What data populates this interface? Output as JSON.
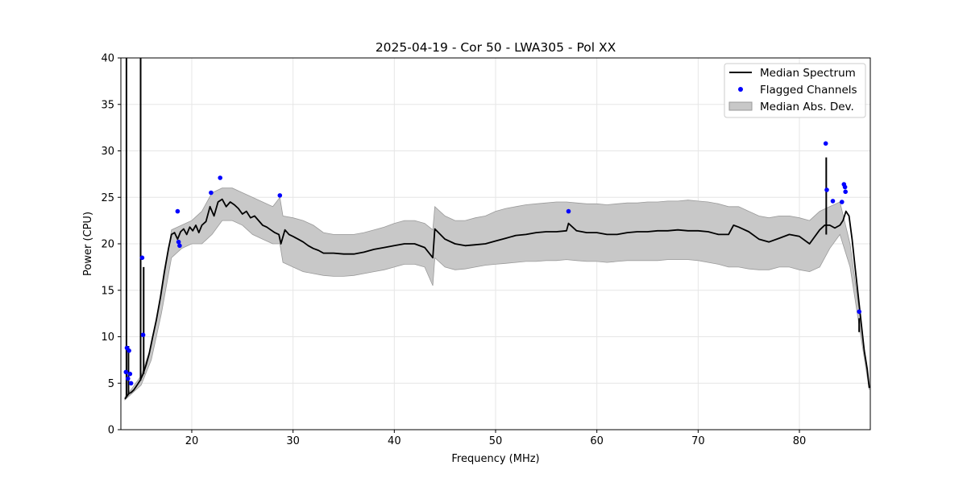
{
  "chart_data": {
    "type": "line",
    "title": "2025-04-19 - Cor 50 - LWA305 - Pol XX",
    "xlabel": "Frequency (MHz)",
    "ylabel": "Power (CPU)",
    "xlim": [
      13.0,
      87.0
    ],
    "ylim": [
      0,
      40
    ],
    "x_ticks": [
      20,
      30,
      40,
      50,
      60,
      70,
      80
    ],
    "x_tick_labels": [
      "20",
      "30",
      "40",
      "50",
      "60",
      "70",
      "80"
    ],
    "y_ticks": [
      0,
      5,
      10,
      15,
      20,
      25,
      30,
      35,
      40
    ],
    "y_tick_labels": [
      "0",
      "5",
      "10",
      "15",
      "20",
      "25",
      "30",
      "35",
      "40"
    ],
    "grid": true,
    "legend_position": "top-right",
    "legend": [
      "Median Spectrum",
      "Flagged Channels",
      "Median Abs. Dev."
    ],
    "colors": {
      "median": "#000000",
      "flagged": "#0000ff",
      "mad_fill": "#c8c8c8",
      "mad_edge": "#9a9a9a",
      "grid": "#e6e6e6"
    },
    "series": [
      {
        "name": "Median Spectrum",
        "kind": "line",
        "x": [
          13.4,
          13.6,
          13.8,
          14.0,
          14.3,
          14.6,
          14.9,
          15.2,
          15.5,
          15.8,
          16.1,
          16.5,
          16.9,
          17.3,
          17.7,
          18.0,
          18.3,
          18.6,
          18.9,
          19.2,
          19.5,
          19.8,
          20.1,
          20.4,
          20.7,
          21.0,
          21.4,
          21.8,
          22.2,
          22.6,
          23.0,
          23.4,
          23.8,
          24.2,
          24.6,
          25.0,
          25.4,
          25.8,
          26.2,
          26.6,
          27.0,
          27.4,
          27.8,
          28.2,
          28.6,
          28.8,
          29.2,
          29.6,
          30.0,
          30.5,
          31.0,
          31.5,
          32.0,
          32.5,
          33.0,
          34.0,
          35.0,
          36.0,
          37.0,
          38.0,
          38.5,
          39.0,
          40.0,
          41.0,
          42.0,
          43.0,
          43.8,
          44.0,
          45.0,
          46.0,
          47.0,
          48.0,
          49.0,
          50.0,
          51.0,
          52.0,
          53.0,
          54.0,
          55.0,
          56.0,
          57.0,
          57.2,
          58.0,
          59.0,
          60.0,
          61.0,
          62.0,
          63.0,
          64.0,
          65.0,
          66.0,
          67.0,
          68.0,
          69.0,
          70.0,
          71.0,
          72.0,
          73.0,
          73.5,
          74.0,
          75.0,
          76.0,
          77.0,
          78.0,
          79.0,
          80.0,
          81.0,
          82.0,
          82.5,
          83.0,
          83.5,
          84.0,
          84.3,
          84.6,
          84.9,
          85.2,
          85.5,
          85.8,
          86.1,
          86.4,
          86.7,
          86.9
        ],
        "y": [
          3.3,
          3.6,
          3.9,
          4.0,
          4.3,
          4.8,
          5.3,
          6.0,
          7.0,
          8.2,
          9.8,
          11.8,
          14.2,
          17.0,
          19.5,
          21.0,
          21.2,
          20.5,
          21.3,
          21.6,
          21.0,
          21.8,
          21.4,
          22.0,
          21.2,
          22.0,
          22.4,
          24.0,
          23.0,
          24.5,
          24.8,
          24.0,
          24.5,
          24.2,
          23.8,
          23.2,
          23.5,
          22.8,
          23.0,
          22.5,
          22.0,
          21.8,
          21.5,
          21.2,
          21.0,
          20.0,
          21.5,
          21.0,
          20.8,
          20.5,
          20.2,
          19.8,
          19.5,
          19.3,
          19.0,
          19.0,
          18.9,
          18.9,
          19.1,
          19.4,
          19.5,
          19.6,
          19.8,
          20.0,
          20.0,
          19.6,
          18.5,
          21.6,
          20.5,
          20.0,
          19.8,
          19.9,
          20.0,
          20.3,
          20.6,
          20.9,
          21.0,
          21.2,
          21.3,
          21.3,
          21.4,
          22.2,
          21.4,
          21.2,
          21.2,
          21.0,
          21.0,
          21.2,
          21.3,
          21.3,
          21.4,
          21.4,
          21.5,
          21.4,
          21.4,
          21.3,
          21.0,
          21.0,
          22.0,
          21.8,
          21.3,
          20.5,
          20.2,
          20.6,
          21.0,
          20.8,
          20.0,
          21.5,
          22.0,
          22.0,
          21.7,
          22.0,
          22.5,
          23.5,
          23.0,
          20.5,
          17.5,
          14.5,
          11.5,
          8.5,
          6.5,
          4.5
        ]
      },
      {
        "name": "Median Abs. Dev.",
        "kind": "band",
        "x": [
          13.4,
          14.0,
          15.0,
          16.0,
          17.0,
          18.0,
          19.0,
          20.0,
          21.0,
          22.0,
          23.0,
          24.0,
          25.0,
          26.0,
          27.0,
          28.0,
          28.7,
          29.0,
          30.0,
          31.0,
          32.0,
          33.0,
          34.0,
          35.0,
          36.0,
          37.0,
          38.0,
          39.0,
          40.0,
          41.0,
          42.0,
          43.0,
          43.8,
          44.0,
          45.0,
          46.0,
          47.0,
          48.0,
          49.0,
          50.0,
          51.0,
          52.0,
          53.0,
          54.0,
          55.0,
          56.0,
          57.0,
          58.0,
          59.0,
          60.0,
          61.0,
          62.0,
          63.0,
          64.0,
          65.0,
          66.0,
          67.0,
          68.0,
          69.0,
          70.0,
          71.0,
          72.0,
          73.0,
          74.0,
          75.0,
          76.0,
          77.0,
          78.0,
          79.0,
          80.0,
          81.0,
          82.0,
          83.0,
          84.0,
          85.0,
          86.0,
          86.9
        ],
        "upper": [
          3.5,
          4.3,
          5.8,
          9.0,
          14.5,
          21.5,
          22.0,
          22.5,
          23.5,
          25.5,
          26.0,
          26.0,
          25.5,
          25.0,
          24.5,
          24.0,
          25.0,
          23.0,
          22.8,
          22.5,
          22.0,
          21.2,
          21.0,
          21.0,
          21.0,
          21.2,
          21.5,
          21.8,
          22.2,
          22.5,
          22.5,
          22.2,
          21.5,
          24.0,
          23.0,
          22.5,
          22.5,
          22.8,
          23.0,
          23.5,
          23.8,
          24.0,
          24.2,
          24.3,
          24.4,
          24.5,
          24.5,
          24.4,
          24.3,
          24.3,
          24.2,
          24.3,
          24.4,
          24.4,
          24.5,
          24.5,
          24.6,
          24.6,
          24.7,
          24.6,
          24.5,
          24.3,
          24.0,
          24.0,
          23.5,
          23.0,
          22.8,
          23.0,
          23.0,
          22.8,
          22.5,
          23.5,
          24.0,
          24.5,
          20.0,
          12.0,
          4.5
        ],
        "lower": [
          3.2,
          3.8,
          4.8,
          7.5,
          12.5,
          18.5,
          19.5,
          20.0,
          20.0,
          21.0,
          22.5,
          22.5,
          22.0,
          21.0,
          20.5,
          20.0,
          20.0,
          18.0,
          17.5,
          17.0,
          16.8,
          16.6,
          16.5,
          16.5,
          16.6,
          16.8,
          17.0,
          17.2,
          17.5,
          17.8,
          17.8,
          17.5,
          15.5,
          18.5,
          17.5,
          17.2,
          17.3,
          17.5,
          17.7,
          17.8,
          17.9,
          18.0,
          18.1,
          18.1,
          18.2,
          18.2,
          18.3,
          18.2,
          18.1,
          18.1,
          18.0,
          18.1,
          18.2,
          18.2,
          18.2,
          18.2,
          18.3,
          18.3,
          18.3,
          18.2,
          18.0,
          17.8,
          17.5,
          17.5,
          17.3,
          17.2,
          17.2,
          17.5,
          17.5,
          17.2,
          17.0,
          17.5,
          19.5,
          21.0,
          17.5,
          10.5,
          4.3
        ]
      },
      {
        "name": "Flagged Channels",
        "kind": "scatter",
        "x": [
          13.5,
          13.6,
          13.7,
          13.8,
          13.9,
          14.0,
          15.1,
          15.2,
          18.6,
          18.7,
          18.8,
          21.9,
          22.8,
          28.7,
          57.2,
          82.6,
          82.7,
          83.3,
          84.2,
          84.4,
          84.5,
          84.55,
          85.9
        ],
        "y": [
          6.2,
          8.8,
          5.5,
          8.5,
          6.0,
          5.0,
          18.5,
          10.2,
          23.5,
          20.2,
          19.8,
          25.5,
          27.1,
          25.2,
          23.5,
          30.8,
          25.8,
          24.6,
          24.5,
          26.4,
          26.1,
          25.6,
          12.7
        ]
      },
      {
        "name": "RFI spikes",
        "kind": "spikes",
        "segments": [
          {
            "x": 13.55,
            "y0": 3.5,
            "y1": 40.0
          },
          {
            "x": 13.75,
            "y0": 3.8,
            "y1": 9.0
          },
          {
            "x": 14.95,
            "y0": 5.3,
            "y1": 40.0
          },
          {
            "x": 15.25,
            "y0": 6.0,
            "y1": 17.5
          },
          {
            "x": 82.65,
            "y0": 21.0,
            "y1": 29.3
          },
          {
            "x": 85.9,
            "y0": 10.5,
            "y1": 12.0
          }
        ]
      }
    ]
  }
}
